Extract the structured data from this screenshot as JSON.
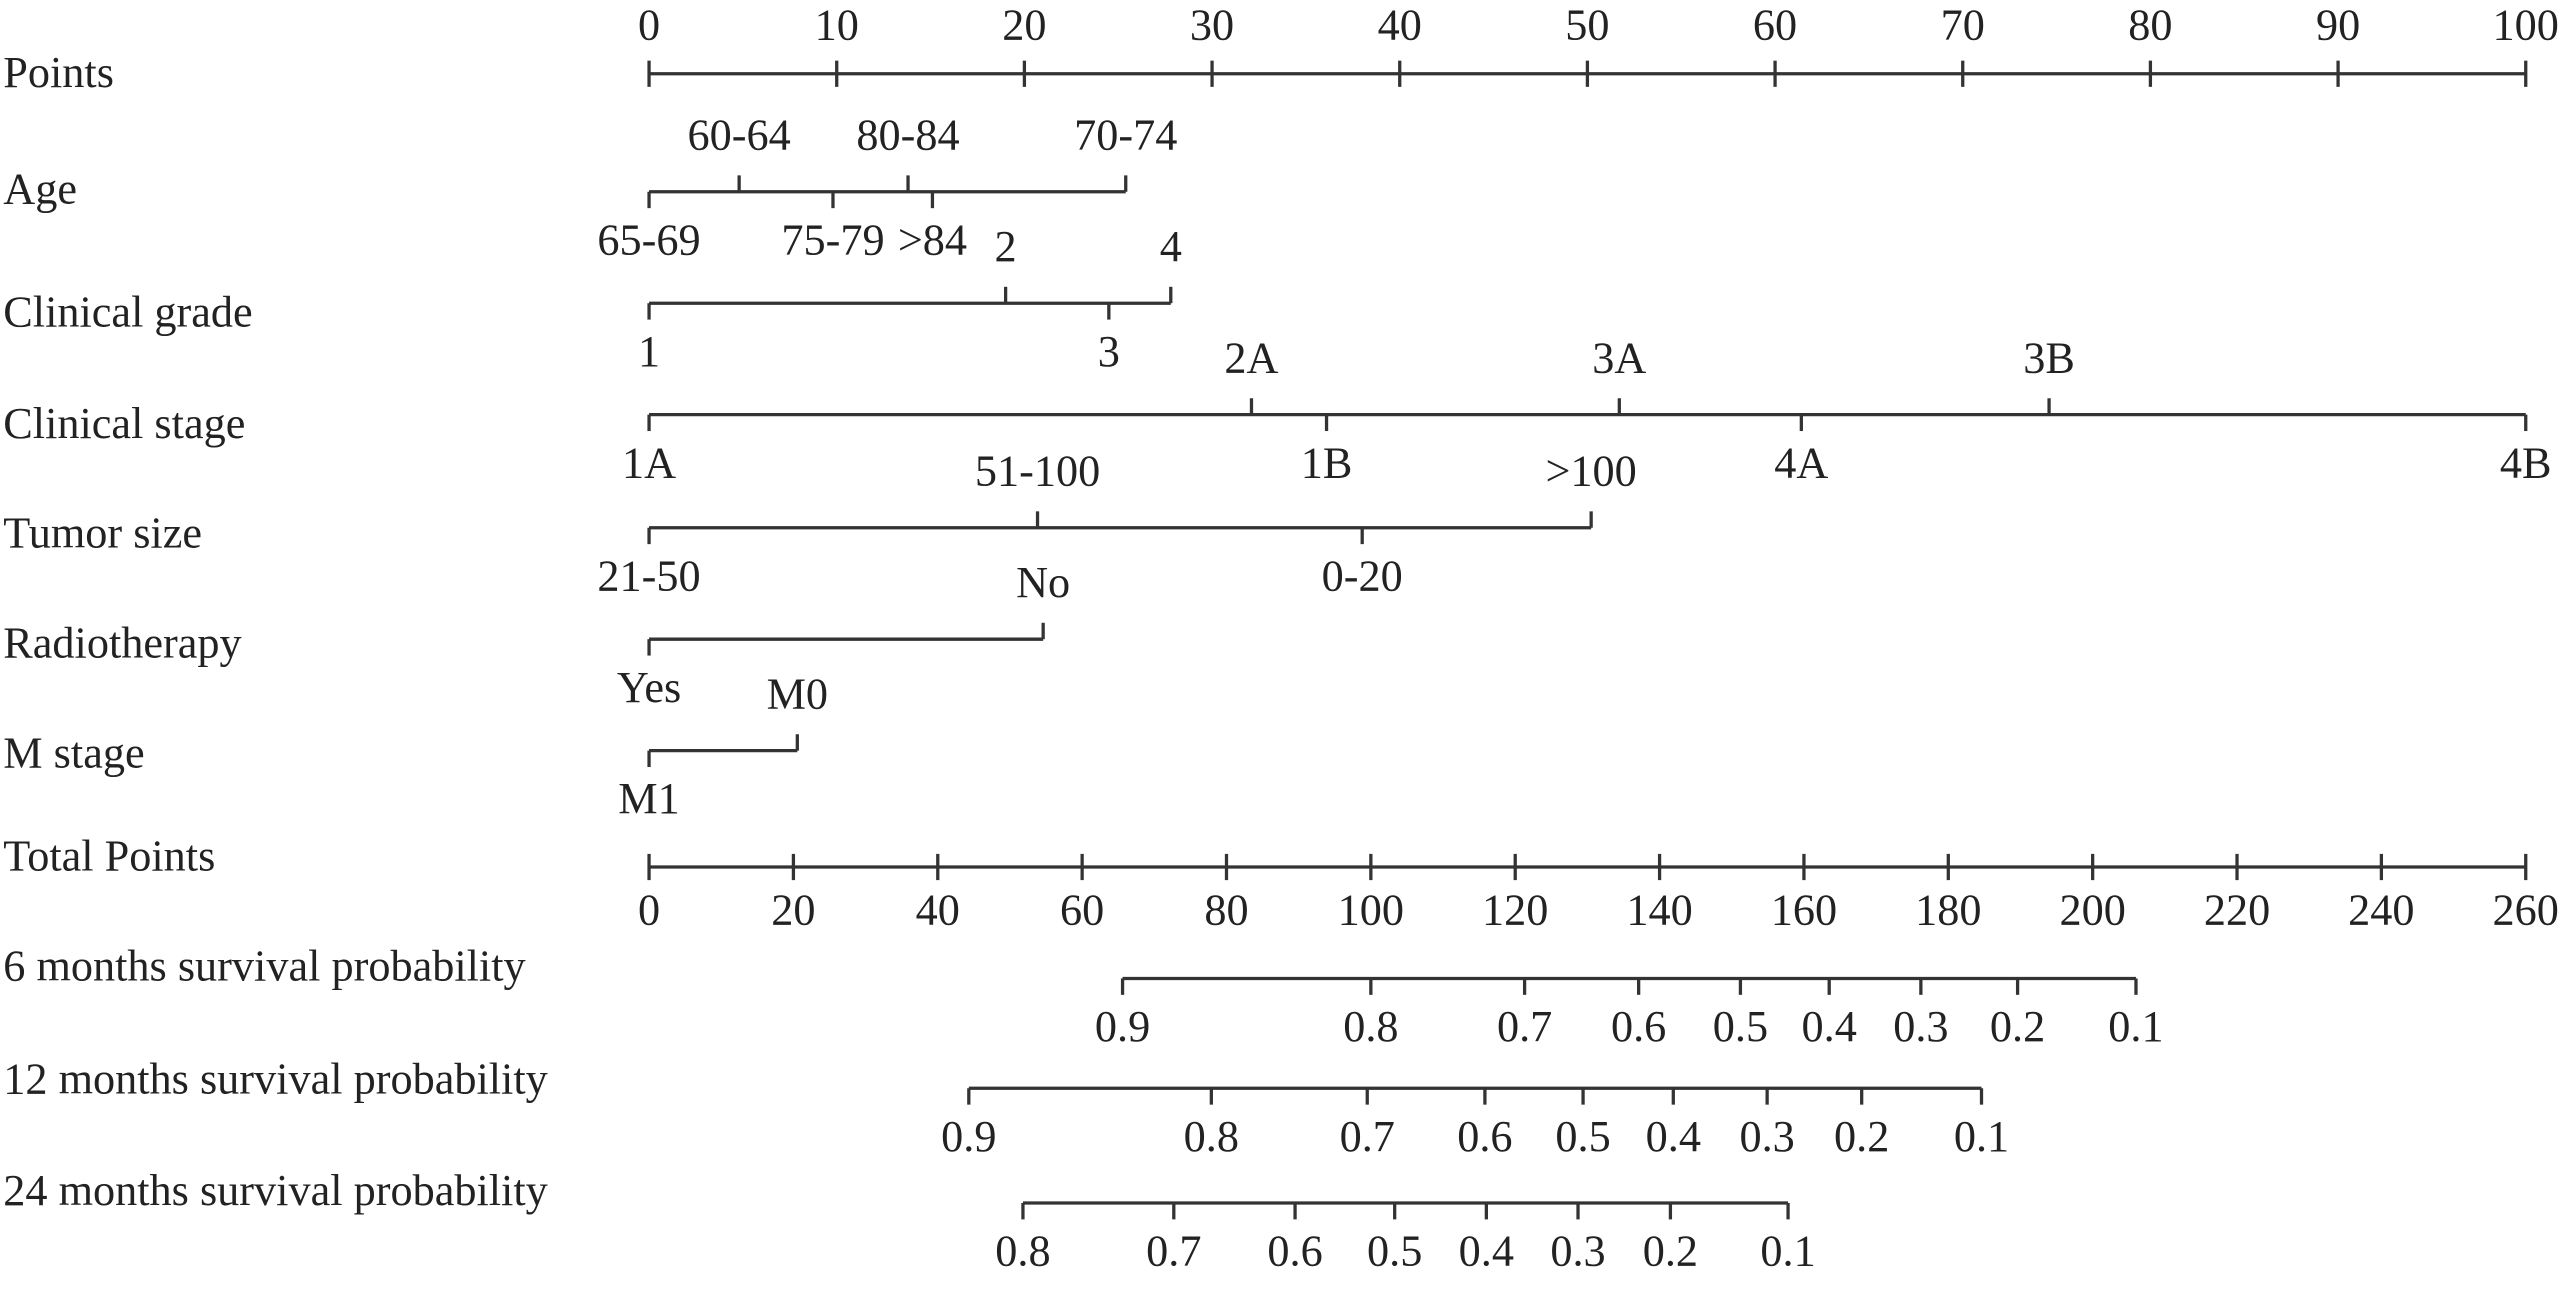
{
  "chart_data": {
    "type": "nomogram",
    "points_axis": {
      "label": "Points",
      "xlim": [
        0,
        100
      ],
      "xticks": [
        0,
        10,
        20,
        30,
        40,
        50,
        60,
        70,
        80,
        90,
        100
      ]
    },
    "variables": [
      {
        "name": "Age",
        "levels": [
          "65-69",
          "60-64",
          "75-79",
          "80-84",
          ">84",
          "70-74"
        ],
        "points": [
          0,
          4.8,
          9.8,
          13.8,
          15.1,
          25.4
        ]
      },
      {
        "name": "Clinical grade",
        "levels": [
          "1",
          "2",
          "3",
          "4"
        ],
        "points": [
          0,
          19.0,
          24.5,
          27.8
        ]
      },
      {
        "name": "Clinical stage",
        "levels": [
          "1A",
          "2A",
          "1B",
          "3A",
          "4A",
          "3B",
          "4B"
        ],
        "points": [
          0,
          32.1,
          36.1,
          51.7,
          61.4,
          74.6,
          100
        ]
      },
      {
        "name": "Tumor size",
        "levels": [
          "21-50",
          "51-100",
          "0-20",
          ">100"
        ],
        "points": [
          0,
          20.7,
          38.0,
          50.2
        ]
      },
      {
        "name": "Radiotherapy",
        "levels": [
          "Yes",
          "No"
        ],
        "points": [
          0,
          21.0
        ]
      },
      {
        "name": "M stage",
        "levels": [
          "M1",
          "M0"
        ],
        "points": [
          0,
          7.9
        ]
      }
    ],
    "total_points_axis": {
      "label": "Total Points",
      "xlim": [
        0,
        260
      ],
      "xticks": [
        0,
        20,
        40,
        60,
        80,
        100,
        120,
        140,
        160,
        180,
        200,
        220,
        240,
        260
      ]
    },
    "survival": [
      {
        "name": "6 months survival probability",
        "values": [
          0.9,
          0.8,
          0.7,
          0.6,
          0.5,
          0.4,
          0.3,
          0.2,
          0.1
        ],
        "total_points": [
          65.6,
          100,
          121.3,
          137.1,
          151.2,
          163.5,
          176.2,
          189.6,
          206.0
        ]
      },
      {
        "name": "12 months survival probability",
        "values": [
          0.9,
          0.8,
          0.7,
          0.6,
          0.5,
          0.4,
          0.3,
          0.2,
          0.1
        ],
        "total_points": [
          44.3,
          77.9,
          99.5,
          115.8,
          129.4,
          141.9,
          154.9,
          168.0,
          184.6
        ]
      },
      {
        "name": "24 months survival probability",
        "values": [
          0.8,
          0.7,
          0.6,
          0.5,
          0.4,
          0.3,
          0.2,
          0.1
        ],
        "total_points": [
          51.8,
          72.7,
          89.5,
          103.3,
          116.0,
          128.7,
          141.5,
          157.8
        ]
      }
    ]
  }
}
